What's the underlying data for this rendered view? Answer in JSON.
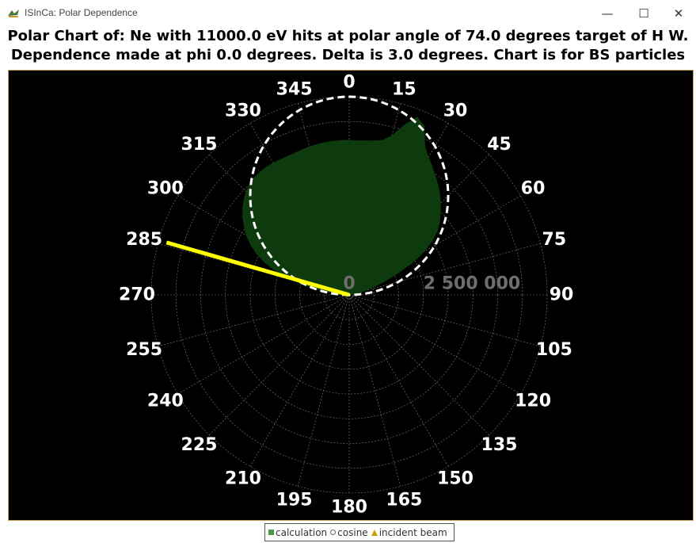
{
  "window": {
    "title": "ISInCa: Polar Dependence",
    "minimize_icon": "minimize-icon",
    "maximize_icon": "maximize-icon",
    "close_icon": "close-icon"
  },
  "chart_title_line1": "Polar Chart of: Ne with 11000.0 eV hits at polar angle of 74.0 degrees target of  H W.",
  "chart_title_line2": "Dependence made at phi 0.0 degrees. Delta is 3.0 degrees. Chart is for BS particles",
  "colors": {
    "background": "#000000",
    "calculation": "#0e3b0e",
    "cosine": "#ffffff",
    "incident_beam": "#ffff00",
    "grid": "#9a9a9a",
    "labels": "#ffffff",
    "radial_labels": "#6e6e6e"
  },
  "chart_data": {
    "type": "polar",
    "angle_labels": [
      "0",
      "15",
      "30",
      "45",
      "60",
      "75",
      "90",
      "105",
      "120",
      "135",
      "150",
      "165",
      "180",
      "195",
      "210",
      "225",
      "240",
      "255",
      "270",
      "285",
      "300",
      "315",
      "330",
      "345"
    ],
    "radial_axis_labels": [
      "0",
      "2 500 000"
    ],
    "radial_max": 5000000,
    "grid": true,
    "legend_position": "bottom",
    "series": [
      {
        "name": "calculation",
        "kind": "area",
        "angles": [
          0,
          3,
          6,
          9,
          12,
          15,
          18,
          21,
          24,
          27,
          30,
          33,
          36,
          39,
          42,
          45,
          48,
          51,
          54,
          57,
          60,
          63,
          66,
          69,
          72,
          75,
          78,
          81,
          84,
          87,
          90,
          270,
          273,
          276,
          279,
          282,
          285,
          288,
          291,
          294,
          297,
          300,
          303,
          306,
          309,
          312,
          315,
          318,
          321,
          324,
          327,
          330,
          333,
          336,
          339,
          342,
          345,
          348,
          351,
          354,
          357
        ],
        "values": [
          3900000,
          3890000,
          3910000,
          3930000,
          3980000,
          4150000,
          4500000,
          4800000,
          4650000,
          4200000,
          4000000,
          3850000,
          3700000,
          3560000,
          3420000,
          3260000,
          3100000,
          2940000,
          2750000,
          2500000,
          2180000,
          1780000,
          1350000,
          950000,
          620000,
          390000,
          220000,
          100000,
          30000,
          5000,
          0,
          0,
          100000,
          330000,
          700000,
          1100000,
          1520000,
          1930000,
          2280000,
          2560000,
          2790000,
          2990000,
          3160000,
          3320000,
          3460000,
          3580000,
          3680000,
          3750000,
          3800000,
          3830000,
          3840000,
          3840000,
          3830000,
          3820000,
          3830000,
          3850000,
          3870000,
          3880000,
          3890000,
          3900000,
          3900000
        ]
      },
      {
        "name": "cosine",
        "kind": "line",
        "formula": "r = 5000000 * cos(theta)",
        "angles_from": -90,
        "angles_to": 90,
        "max_value": 5000000
      },
      {
        "name": "incident beam",
        "kind": "line",
        "angles": [
          286,
          286
        ],
        "values": [
          0,
          4800000
        ]
      }
    ]
  },
  "legend": {
    "items": [
      {
        "label": "calculation",
        "icon": "green-square-icon"
      },
      {
        "label": "cosine",
        "icon": "circle-icon"
      },
      {
        "label": "incident beam",
        "icon": "triangle-icon"
      }
    ]
  }
}
